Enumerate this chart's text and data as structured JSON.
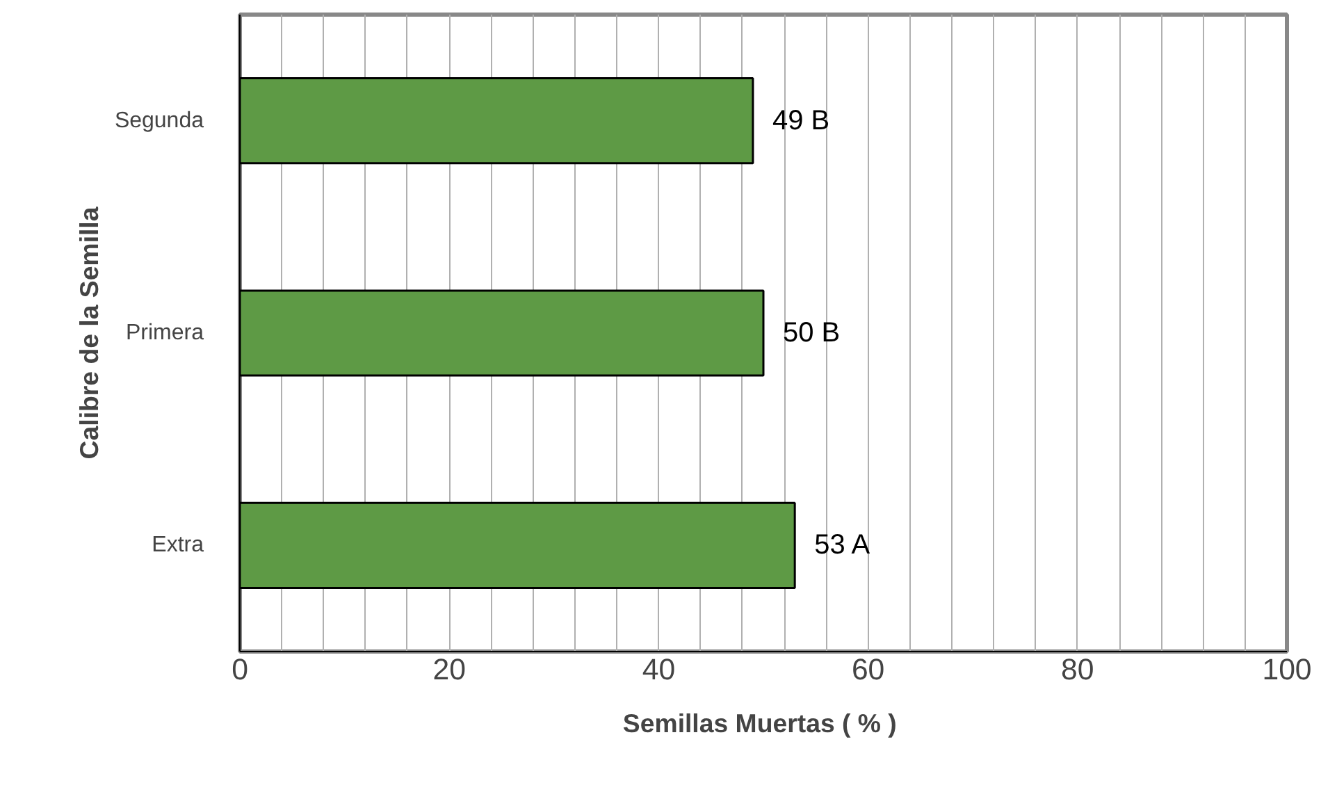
{
  "chart_data": {
    "type": "bar",
    "orientation": "horizontal",
    "xlabel": "Semillas  Muertas ( % )",
    "ylabel": "Calibre de la Semilla",
    "categories": [
      "Segunda",
      "Primera",
      "Extra"
    ],
    "values": [
      49,
      50,
      53
    ],
    "color": "#5e9a45",
    "value_labels": [
      "49  B",
      "50  B",
      "53  A"
    ],
    "xlim": [
      0,
      100
    ],
    "xticks": [
      0,
      {
        "value": 4,
        "label": null
      },
      {
        "value": 8,
        "label": null
      },
      {
        "value": 12,
        "label": null
      },
      {
        "value": 16,
        "label": null
      },
      20,
      {
        "value": 24,
        "label": null
      },
      {
        "value": 28,
        "label": null
      },
      {
        "value": 32,
        "label": null
      },
      {
        "value": 36,
        "label": null
      },
      40,
      {
        "value": 44,
        "label": null
      },
      {
        "value": 48,
        "label": null
      },
      {
        "value": 52,
        "label": null
      },
      {
        "value": 56,
        "label": null
      },
      60,
      {
        "value": 64,
        "label": null
      },
      {
        "value": 68,
        "label": null
      },
      {
        "value": 72,
        "label": null
      },
      {
        "value": 76,
        "label": null
      },
      80,
      {
        "value": 84,
        "label": null
      },
      {
        "value": 88,
        "label": null
      },
      {
        "value": 92,
        "label": null
      },
      {
        "value": 96,
        "label": null
      },
      100
    ],
    "grid": "x"
  }
}
